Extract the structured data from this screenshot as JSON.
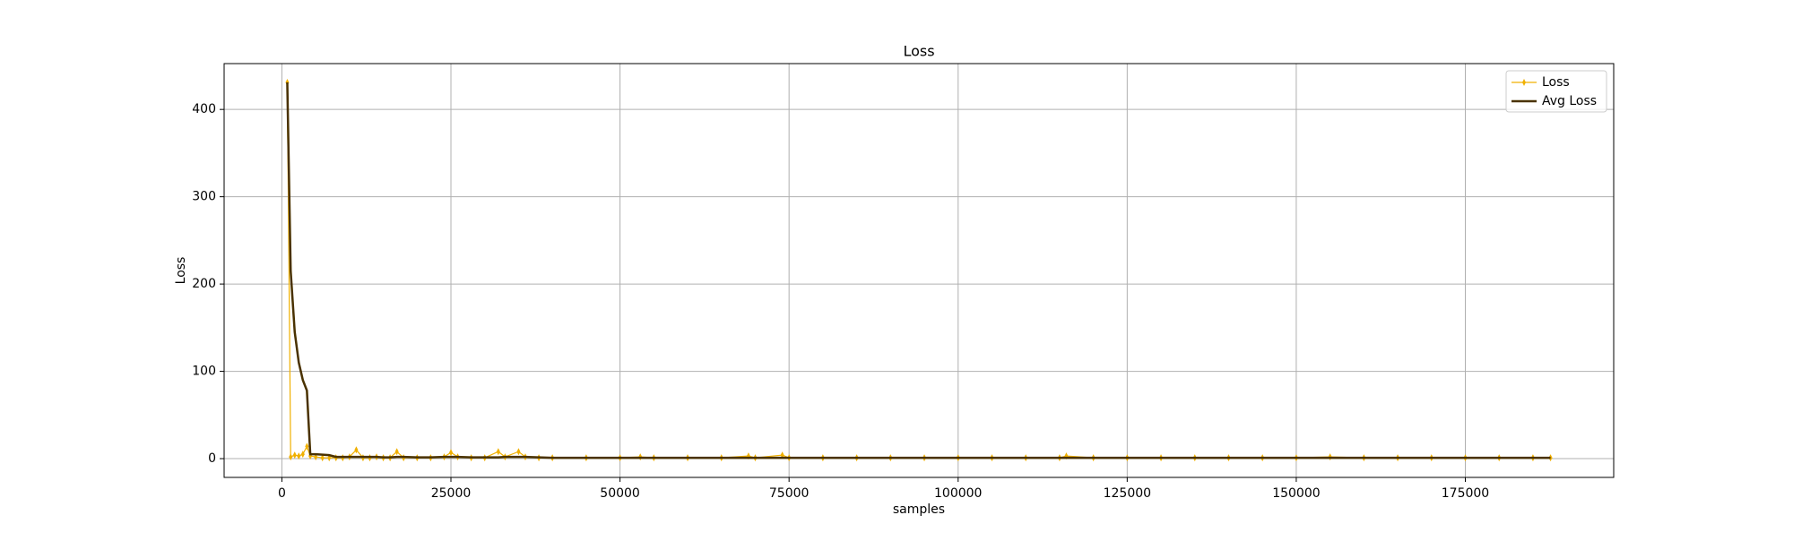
{
  "chart_data": {
    "type": "line",
    "title": "Loss",
    "x_label": "samples",
    "y_label": "Loss",
    "x": [
      800,
      1300,
      1900,
      2500,
      3100,
      3700,
      4200,
      5000,
      6000,
      7000,
      8000,
      9000,
      10000,
      11000,
      12000,
      13000,
      14000,
      15000,
      16000,
      17000,
      18000,
      20000,
      22000,
      24000,
      25000,
      26000,
      28000,
      30000,
      32000,
      33000,
      35000,
      36000,
      38000,
      40000,
      45000,
      50000,
      53000,
      55000,
      60000,
      65000,
      69000,
      70000,
      74000,
      75000,
      80000,
      85000,
      90000,
      95000,
      100000,
      105000,
      110000,
      115000,
      116000,
      120000,
      125000,
      130000,
      135000,
      140000,
      145000,
      150000,
      155000,
      160000,
      165000,
      170000,
      175000,
      180000,
      185000,
      187600
    ],
    "series": [
      {
        "name": "Loss",
        "color": "#f0b000",
        "values": [
          431,
          2,
          4,
          3,
          5,
          14,
          3,
          2,
          1,
          1,
          1,
          1,
          2,
          10,
          1,
          1,
          2,
          1,
          1,
          8,
          1,
          1,
          1,
          2,
          7,
          2,
          1,
          1,
          8,
          2,
          8,
          2,
          1,
          1,
          1,
          1,
          2,
          1,
          1,
          1,
          3,
          1,
          4,
          1,
          1,
          1,
          1,
          1,
          1,
          1,
          1,
          1,
          3,
          1,
          1,
          1,
          1,
          1,
          1,
          1,
          2,
          1,
          1,
          1,
          1,
          1,
          1,
          1
        ]
      },
      {
        "name": "Avg Loss",
        "color": "#4a3200",
        "values": [
          431,
          215,
          145,
          110,
          90,
          78,
          5,
          5,
          4.5,
          4,
          2,
          2,
          2,
          2,
          2,
          2,
          2,
          1.5,
          1.5,
          2,
          2,
          1.5,
          1.5,
          2,
          2,
          2,
          1.5,
          1.5,
          1.5,
          2,
          2,
          2,
          1.5,
          1,
          1,
          1,
          1,
          1,
          1,
          1,
          1,
          1,
          1,
          1,
          1,
          1,
          1,
          1,
          1,
          1,
          1,
          1,
          1,
          1,
          1,
          1,
          1,
          1,
          1,
          1,
          1,
          1,
          1,
          1,
          1,
          1,
          1,
          1
        ]
      }
    ],
    "xlim": [
      -8540,
      196940
    ],
    "ylim": [
      -21.5,
      452.5
    ],
    "xticks": [
      0,
      25000,
      50000,
      75000,
      100000,
      125000,
      150000,
      175000
    ],
    "yticks": [
      0,
      100,
      200,
      300,
      400
    ],
    "grid": true,
    "legend": "upper right"
  }
}
